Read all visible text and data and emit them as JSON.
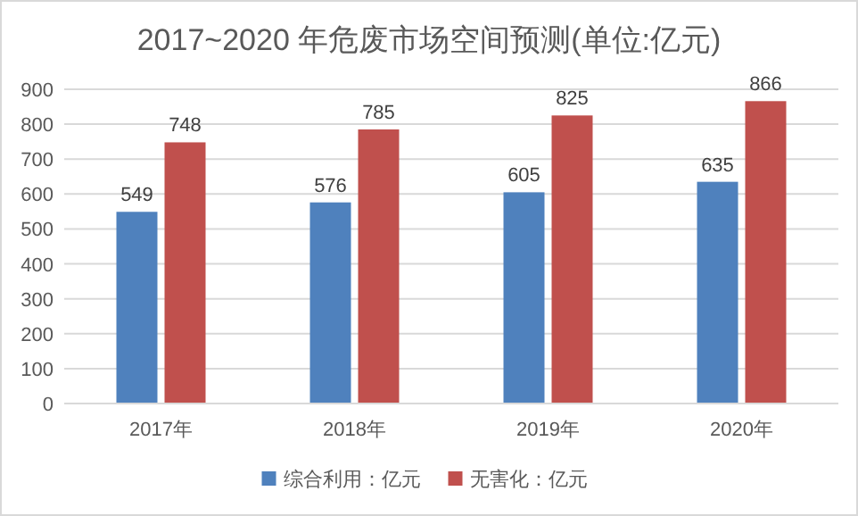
{
  "chart_data": {
    "type": "bar",
    "title": "2017~2020 年危废市场空间预测(单位:亿元)",
    "categories": [
      "2017年",
      "2018年",
      "2019年",
      "2020年"
    ],
    "series": [
      {
        "name": "综合利用：亿元",
        "color": "#4f81bd",
        "values": [
          549,
          576,
          605,
          635
        ]
      },
      {
        "name": "无害化：亿元",
        "color": "#c0504d",
        "values": [
          748,
          785,
          825,
          866
        ]
      }
    ],
    "ylim": [
      0,
      900
    ],
    "yticks": [
      0,
      100,
      200,
      300,
      400,
      500,
      600,
      700,
      800,
      900
    ],
    "grid": "y",
    "legend": "bottom",
    "data_labels": true
  }
}
